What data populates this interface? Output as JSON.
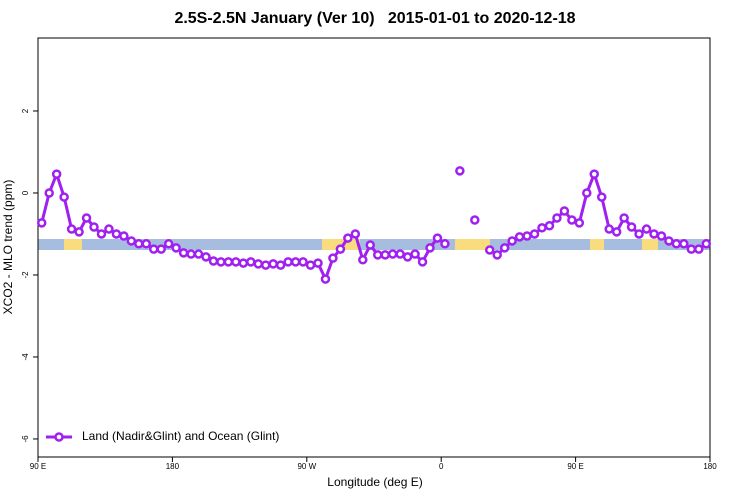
{
  "chart_data": {
    "type": "line",
    "title": "2.5S-2.5N January (Ver 10)   2015-01-01 to 2020-12-18",
    "x_label": "Longitude (deg E)",
    "y_label": "XCO2 - MLO trend (ppm)",
    "xlim": [
      90,
      540
    ],
    "ylim": [
      -6.44,
      3.78
    ],
    "xticks": [
      {
        "value": 90,
        "label": "90 E"
      },
      180,
      {
        "value": 270,
        "label": "90 W"
      },
      {
        "value": 360,
        "label": "0"
      },
      {
        "value": 450,
        "label": "90 E"
      },
      {
        "value": 540,
        "label": "180"
      }
    ],
    "yticks": [
      -6,
      -4,
      -2,
      0,
      2
    ],
    "legend": "bottom-left",
    "x": [
      92.5,
      97.5,
      102.5,
      107.5,
      112.5,
      117.5,
      122.5,
      127.5,
      132.5,
      137.5,
      142.5,
      147.5,
      152.5,
      157.5,
      162.5,
      167.5,
      172.5,
      177.5,
      182.5,
      187.5,
      192.5,
      197.5,
      202.5,
      207.5,
      212.5,
      217.5,
      222.5,
      227.5,
      232.5,
      237.5,
      242.5,
      247.5,
      252.5,
      257.5,
      262.5,
      267.5,
      272.5,
      277.5,
      282.5,
      287.5,
      292.5,
      297.5,
      302.5,
      307.5,
      312.5,
      317.5,
      322.5,
      327.5,
      332.5,
      337.5,
      342.5,
      347.5,
      352.5,
      357.5,
      362.5,
      367.5,
      372.5,
      377.5,
      382.5,
      387.5,
      392.5,
      397.5,
      402.5,
      407.5,
      412.5,
      417.5,
      422.5,
      427.5,
      432.5,
      437.5,
      442.5,
      447.5,
      452.5,
      457.5,
      462.5,
      467.5,
      472.5,
      477.5,
      482.5,
      487.5,
      492.5,
      497.5,
      502.5,
      507.5,
      512.5,
      517.5,
      522.5,
      527.5,
      532.5,
      537.5
    ],
    "series": [
      {
        "name": "Land (Nadir&Glint) and Ocean (Glint)",
        "color": "#a020f0",
        "values": [
          -0.73,
          0.0,
          0.46,
          -0.1,
          -0.88,
          -0.95,
          -0.61,
          -0.83,
          -1.0,
          -0.88,
          -1.0,
          -1.05,
          -1.17,
          -1.24,
          -1.24,
          -1.37,
          -1.37,
          -1.24,
          -1.34,
          -1.46,
          -1.49,
          -1.49,
          -1.56,
          -1.66,
          -1.68,
          -1.68,
          -1.68,
          -1.71,
          -1.68,
          -1.73,
          -1.76,
          -1.73,
          -1.76,
          -1.68,
          -1.68,
          -1.68,
          -1.76,
          -1.71,
          -2.1,
          -1.59,
          -1.37,
          -1.1,
          -1.0,
          -1.63,
          -1.27,
          -1.51,
          -1.51,
          -1.49,
          -1.49,
          -1.56,
          -1.49,
          -1.68,
          -1.34,
          -1.1,
          -1.24,
          null,
          0.54,
          null,
          -0.66,
          null,
          -1.39,
          -1.51,
          -1.34,
          -1.17,
          -1.07,
          -1.05,
          -1.0,
          -0.85,
          -0.8,
          -0.61,
          -0.44,
          -0.66,
          -0.73,
          0.0,
          0.46,
          -0.1,
          -0.88,
          -0.95,
          -0.61,
          -0.83,
          -1.0,
          -0.88,
          -1.0,
          -1.05,
          -1.17,
          -1.24,
          -1.24,
          -1.37,
          -1.37,
          -1.24
        ]
      }
    ]
  }
}
